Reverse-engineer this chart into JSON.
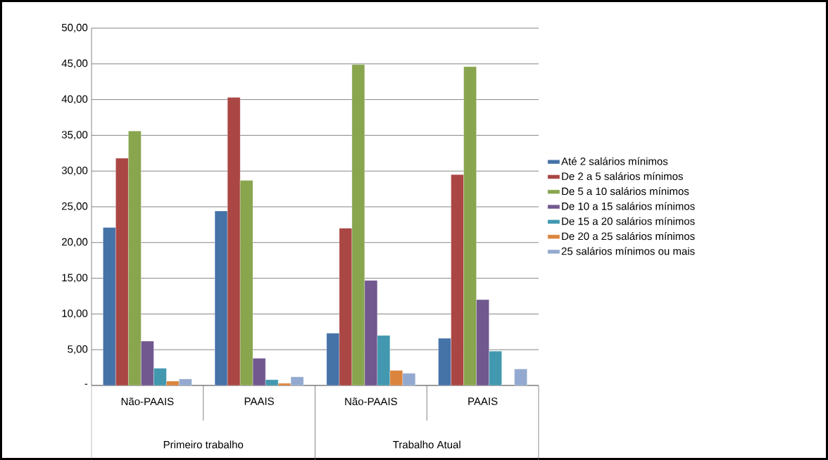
{
  "chart_data": {
    "type": "bar",
    "categories": [
      "Não-PAAIS",
      "PAAIS",
      "Não-PAAIS",
      "PAAIS"
    ],
    "annotations": [
      "Primeiro trabalho",
      "Trabalho Atual"
    ],
    "series": [
      {
        "name": "Até 2 salários mínimos",
        "color": "#4572a7",
        "values": [
          22.1,
          24.4,
          7.3,
          6.6
        ]
      },
      {
        "name": "De 2 a 5 salários mínimos",
        "color": "#aa4643",
        "values": [
          31.8,
          40.3,
          22.0,
          29.5
        ]
      },
      {
        "name": "De 5 a 10 salários mínimos",
        "color": "#89a54e",
        "values": [
          35.6,
          28.7,
          44.9,
          44.6
        ]
      },
      {
        "name": "De 10 a 15 salários mínimos",
        "color": "#71588f",
        "values": [
          6.2,
          3.8,
          14.7,
          12.0
        ]
      },
      {
        "name": "De 15 a 20 salários mínimos",
        "color": "#4198af",
        "values": [
          2.4,
          0.8,
          7.0,
          4.8
        ]
      },
      {
        "name": "De 20 a 25 salários mínimos",
        "color": "#db843d",
        "values": [
          0.6,
          0.3,
          2.1,
          null
        ]
      },
      {
        "name": "25 salários mínimos ou mais",
        "color": "#93a9cf",
        "values": [
          0.9,
          1.2,
          1.7,
          2.3
        ]
      }
    ],
    "ylim": [
      0,
      50
    ],
    "yticks": [
      {
        "value": 0,
        "label": "-"
      },
      {
        "value": 5,
        "label": "5,00"
      },
      {
        "value": 10,
        "label": "10,00"
      },
      {
        "value": 15,
        "label": "15,00"
      },
      {
        "value": 20,
        "label": "20,00"
      },
      {
        "value": 25,
        "label": "25,00"
      },
      {
        "value": 30,
        "label": "30,00"
      },
      {
        "value": 35,
        "label": "35,00"
      },
      {
        "value": 40,
        "label": "40,00"
      },
      {
        "value": 45,
        "label": "45,00"
      },
      {
        "value": 50,
        "label": "50,00"
      }
    ],
    "grid": "y",
    "legend": "right"
  }
}
